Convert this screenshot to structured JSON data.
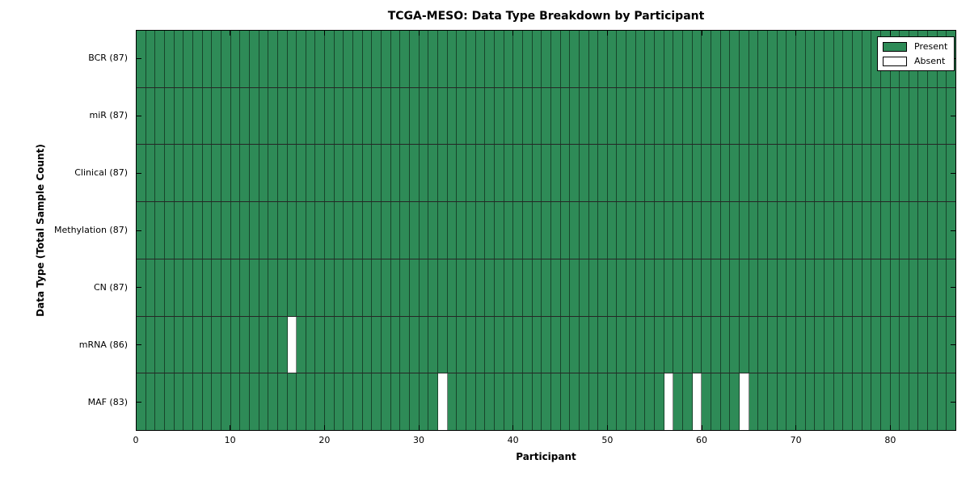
{
  "chart_data": {
    "type": "heatmap",
    "title": "TCGA-MESO: Data Type Breakdown by Participant",
    "xlabel": "Participant",
    "ylabel": "Data Type (Total Sample Count)",
    "x_ticks": [
      0,
      10,
      20,
      30,
      40,
      50,
      60,
      70,
      80
    ],
    "x_range": [
      0,
      87
    ],
    "n_participants": 87,
    "rows": [
      {
        "label": "BCR (87)",
        "data_type": "BCR",
        "present_count": 87,
        "absent_participants": []
      },
      {
        "label": "miR (87)",
        "data_type": "miR",
        "present_count": 87,
        "absent_participants": []
      },
      {
        "label": "Clinical (87)",
        "data_type": "Clinical",
        "present_count": 87,
        "absent_participants": []
      },
      {
        "label": "Methylation (87)",
        "data_type": "Methylation",
        "present_count": 87,
        "absent_participants": []
      },
      {
        "label": "CN (87)",
        "data_type": "CN",
        "present_count": 87,
        "absent_participants": []
      },
      {
        "label": "mRNA (86)",
        "data_type": "mRNA",
        "present_count": 86,
        "absent_participants": [
          16
        ]
      },
      {
        "label": "MAF (83)",
        "data_type": "MAF",
        "present_count": 83,
        "absent_participants": [
          32,
          56,
          59,
          64
        ]
      }
    ],
    "legend": [
      {
        "label": "Present",
        "color": "#2e8b57"
      },
      {
        "label": "Absent",
        "color": "#ffffff"
      }
    ],
    "colors": {
      "present": "#2e8b57",
      "absent": "#ffffff",
      "cell_edge": "rgba(0,0,0,0.5)",
      "row_edge": "rgba(0,0,0,0.85)",
      "spine": "#000000"
    },
    "legend_position": "upper right",
    "grid": "cell-borders"
  }
}
